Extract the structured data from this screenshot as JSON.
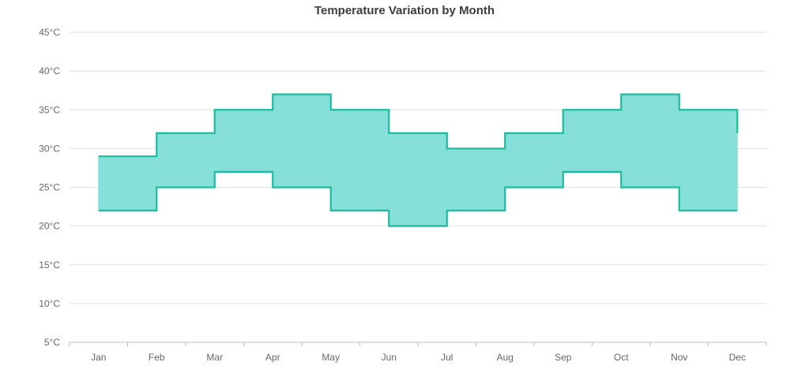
{
  "chart_data": {
    "type": "area",
    "subtype": "step-range-area",
    "title": "Temperature Variation by Month",
    "xlabel": "",
    "ylabel": "",
    "categories": [
      "Jan",
      "Feb",
      "Mar",
      "Apr",
      "May",
      "Jun",
      "Jul",
      "Aug",
      "Sep",
      "Oct",
      "Nov",
      "Dec"
    ],
    "series": [
      {
        "high": [
          29,
          32,
          35,
          37,
          35,
          32,
          30,
          32,
          35,
          37,
          35,
          32
        ],
        "low": [
          22,
          25,
          27,
          25,
          22,
          20,
          22,
          25,
          27,
          25,
          22,
          22
        ]
      }
    ],
    "ylim": [
      5,
      45
    ],
    "yticks": [
      "5°C",
      "10°C",
      "15°C",
      "20°C",
      "25°C",
      "30°C",
      "35°C",
      "40°C",
      "45°C"
    ],
    "grid": true,
    "legend": "none",
    "colors": {
      "stroke": "#1abc9c",
      "fill": "#7fded7"
    }
  }
}
